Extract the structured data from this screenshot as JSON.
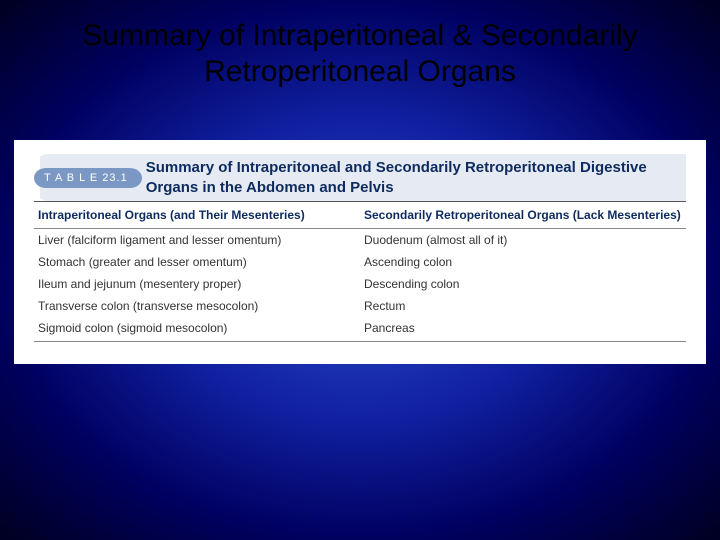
{
  "slide": {
    "title": "Summary of Intraperitoneal & Secondarily Retroperitoneal Organs",
    "background_gradient": [
      "#2a4ac8",
      "#1020a0",
      "#000060",
      "#000020"
    ]
  },
  "table": {
    "badge": "T A B L E  23.1",
    "caption": "Summary of Intraperitoneal and Secondarily Retroperitoneal Digestive Organs in the Abdomen and Pelvis",
    "columns": [
      "Intraperitoneal Organs (and Their Mesenteries)",
      "Secondarily Retroperitoneal Organs (Lack Mesenteries)"
    ],
    "rows": [
      [
        "Liver (falciform ligament and lesser omentum)",
        "Duodenum (almost all of it)"
      ],
      [
        "Stomach (greater and lesser omentum)",
        "Ascending colon"
      ],
      [
        "Ileum and jejunum (mesentery proper)",
        "Descending colon"
      ],
      [
        "Transverse colon (transverse mesocolon)",
        "Rectum"
      ],
      [
        "Sigmoid colon (sigmoid mesocolon)",
        "Pancreas"
      ]
    ],
    "colors": {
      "badge_bg": "#7b98c4",
      "badge_text": "#ffffff",
      "caption_text": "#0d2b5e",
      "caption_bg": "#e6ebf3",
      "header_text": "#0d2b5e",
      "body_text": "#333333",
      "rule": "#888888",
      "box_bg": "#ffffff"
    },
    "fontsize": {
      "badge": 11,
      "caption": 15,
      "header": 12,
      "body": 12
    }
  }
}
